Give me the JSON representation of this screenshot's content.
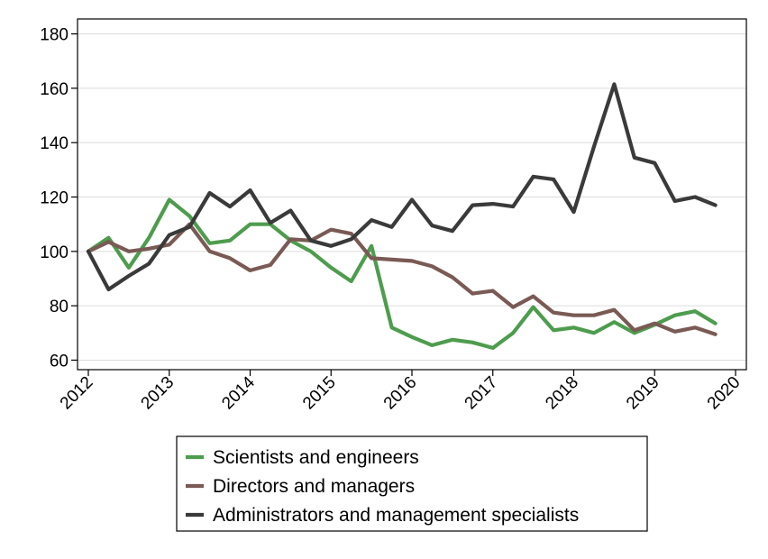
{
  "chart_data": {
    "type": "line",
    "title": "",
    "xlabel": "",
    "ylabel": "",
    "xlim": [
      2012,
      2020
    ],
    "ylim": [
      60,
      180
    ],
    "grid": true,
    "legend_position": "bottom",
    "x_ticks": [
      "2012",
      "2013",
      "2014",
      "2015",
      "2016",
      "2017",
      "2018",
      "2019",
      "2020"
    ],
    "y_ticks": [
      60,
      80,
      100,
      120,
      140,
      160,
      180
    ],
    "x": [
      2012.0,
      2012.25,
      2012.5,
      2012.75,
      2013.0,
      2013.25,
      2013.5,
      2013.75,
      2014.0,
      2014.25,
      2014.5,
      2014.75,
      2015.0,
      2015.25,
      2015.5,
      2015.75,
      2016.0,
      2016.25,
      2016.5,
      2016.75,
      2017.0,
      2017.25,
      2017.5,
      2017.75,
      2018.0,
      2018.25,
      2018.5,
      2018.75,
      2019.0,
      2019.25,
      2019.5,
      2019.75
    ],
    "series": [
      {
        "name": "Scientists and engineers",
        "color": "#4e9c4e",
        "values": [
          100,
          105,
          94,
          105,
          119,
          113,
          103,
          104,
          110,
          110,
          104,
          100,
          94,
          89,
          102,
          72,
          68.5,
          65.5,
          67.5,
          66.5,
          64.5,
          70,
          79.5,
          71,
          72,
          70,
          74,
          70,
          73,
          76.5,
          78,
          73.5
        ]
      },
      {
        "name": "Directors and managers",
        "color": "#7a5a54",
        "values": [
          100,
          103.5,
          100,
          101,
          102.5,
          110,
          100,
          97.5,
          93,
          95,
          104.5,
          104,
          108,
          106.5,
          97.5,
          97,
          96.5,
          94.5,
          90.5,
          84.5,
          85.5,
          79.5,
          83.5,
          77.5,
          76.5,
          76.5,
          78.5,
          71,
          73.5,
          70.5,
          72,
          69.5
        ]
      },
      {
        "name": "Administrators and management specialists",
        "color": "#3a3a3a",
        "values": [
          100,
          86,
          91,
          95.5,
          106,
          109,
          121.5,
          116.5,
          122.5,
          110.5,
          115,
          104,
          102,
          104.5,
          111.5,
          109,
          119,
          109.5,
          107.5,
          117,
          117.5,
          116.5,
          127.5,
          126.5,
          114.5,
          138.5,
          161.5,
          134.5,
          132.5,
          118.5,
          120,
          117
        ]
      }
    ]
  }
}
